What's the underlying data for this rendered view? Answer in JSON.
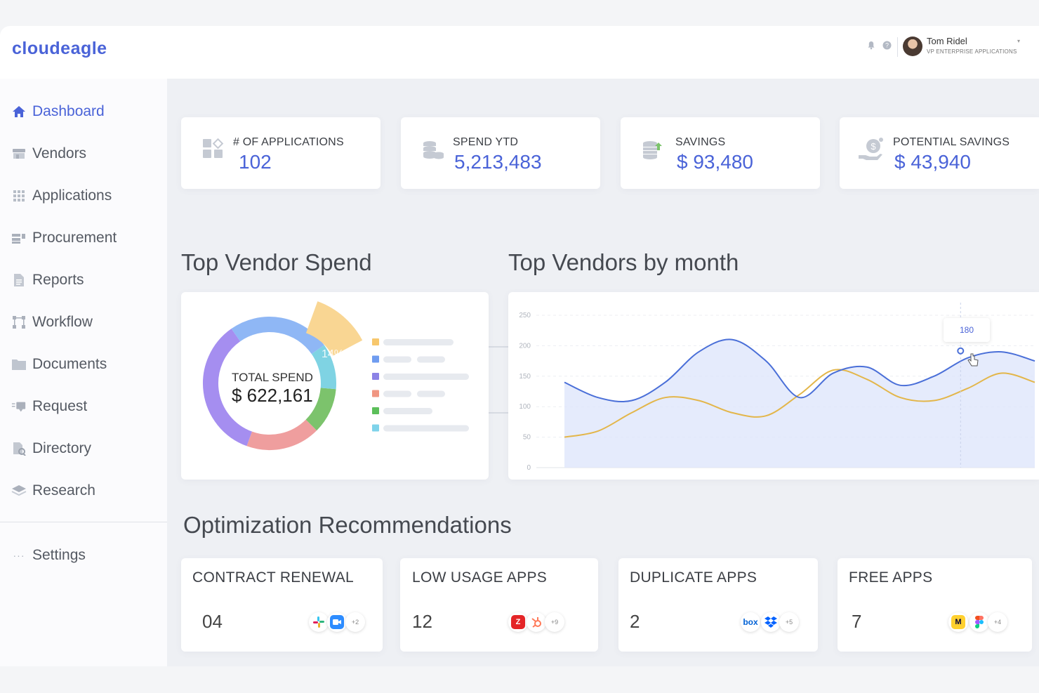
{
  "brand": {
    "logo_text": "cloudeagle",
    "accent": "#4a63d8"
  },
  "user": {
    "name": "Tom Ridel",
    "role": "VP ENTERPRISE APPLICATIONS"
  },
  "sidebar": {
    "items": [
      {
        "label": "Dashboard",
        "icon": "home-icon",
        "active": true
      },
      {
        "label": "Vendors",
        "icon": "store-icon"
      },
      {
        "label": "Applications",
        "icon": "grid-icon"
      },
      {
        "label": "Procurement",
        "icon": "procurement-icon"
      },
      {
        "label": "Reports",
        "icon": "report-icon"
      },
      {
        "label": "Workflow",
        "icon": "workflow-icon"
      },
      {
        "label": "Documents",
        "icon": "folder-icon"
      },
      {
        "label": "Request",
        "icon": "request-icon"
      },
      {
        "label": "Directory",
        "icon": "directory-icon"
      },
      {
        "label": "Research",
        "icon": "layers-icon"
      }
    ],
    "settings_label": "Settings"
  },
  "kpis": [
    {
      "label": "# OF APPLICATIONS",
      "value": "102",
      "icon": "apps-icon"
    },
    {
      "label": "SPEND YTD",
      "value": "5,213,483",
      "icon": "coins-icon"
    },
    {
      "label": "SAVINGS",
      "value": "$ 93,480",
      "icon": "savings-icon"
    },
    {
      "label": "POTENTIAL SAVINGS",
      "value": "$ 43,940",
      "icon": "hand-coin-icon"
    }
  ],
  "top_vendor_spend": {
    "title": "Top Vendor Spend",
    "total_label": "TOTAL SPEND",
    "total_value": "$ 622,161",
    "highlight_label": "14%",
    "segment_colors": [
      "#8fb7f5",
      "#a58ef0",
      "#ef9e9e",
      "#7cc36c",
      "#7fd3e3",
      "#f9d693"
    ],
    "legend_colors": [
      "#f7c76c",
      "#6f9cf0",
      "#8c83e6",
      "#f09682",
      "#5cbf5a",
      "#7fd3ea"
    ]
  },
  "top_vendors_by_month": {
    "title": "Top Vendors by month",
    "tooltip_value": "180"
  },
  "chart_data": {
    "type": "line",
    "title": "Top Vendors by month",
    "ylim": [
      0,
      250
    ],
    "yticks": [
      "0",
      "50",
      "100",
      "150",
      "200",
      "250"
    ],
    "grid": true,
    "x": [
      0,
      1,
      2,
      3,
      4,
      5,
      6,
      7,
      8,
      9,
      10,
      11,
      12,
      13,
      14
    ],
    "series": [
      {
        "color": "#4a6fd8",
        "values": [
          140,
          115,
          110,
          140,
          190,
          210,
          175,
          115,
          155,
          165,
          135,
          150,
          180,
          190,
          175
        ]
      },
      {
        "color": "#e3b64a",
        "values": [
          50,
          60,
          90,
          115,
          110,
          90,
          85,
          120,
          160,
          145,
          115,
          110,
          130,
          155,
          140
        ]
      }
    ],
    "marker_value": 180
  },
  "recommendations": {
    "title": "Optimization Recommendations",
    "cards": [
      {
        "label": "CONTRACT RENEWAL",
        "count": "04",
        "more": "+2",
        "apps": [
          "slack-icon",
          "zoom-icon"
        ]
      },
      {
        "label": "LOW USAGE APPS",
        "count": "12",
        "more": "+9",
        "apps": [
          "zoho-icon",
          "hubspot-icon"
        ]
      },
      {
        "label": "DUPLICATE APPS",
        "count": "2",
        "more": "+5",
        "apps": [
          "box-icon",
          "dropbox-icon"
        ]
      },
      {
        "label": "FREE APPS",
        "count": "7",
        "more": "+4",
        "apps": [
          "miro-icon",
          "figma-icon"
        ]
      }
    ]
  }
}
